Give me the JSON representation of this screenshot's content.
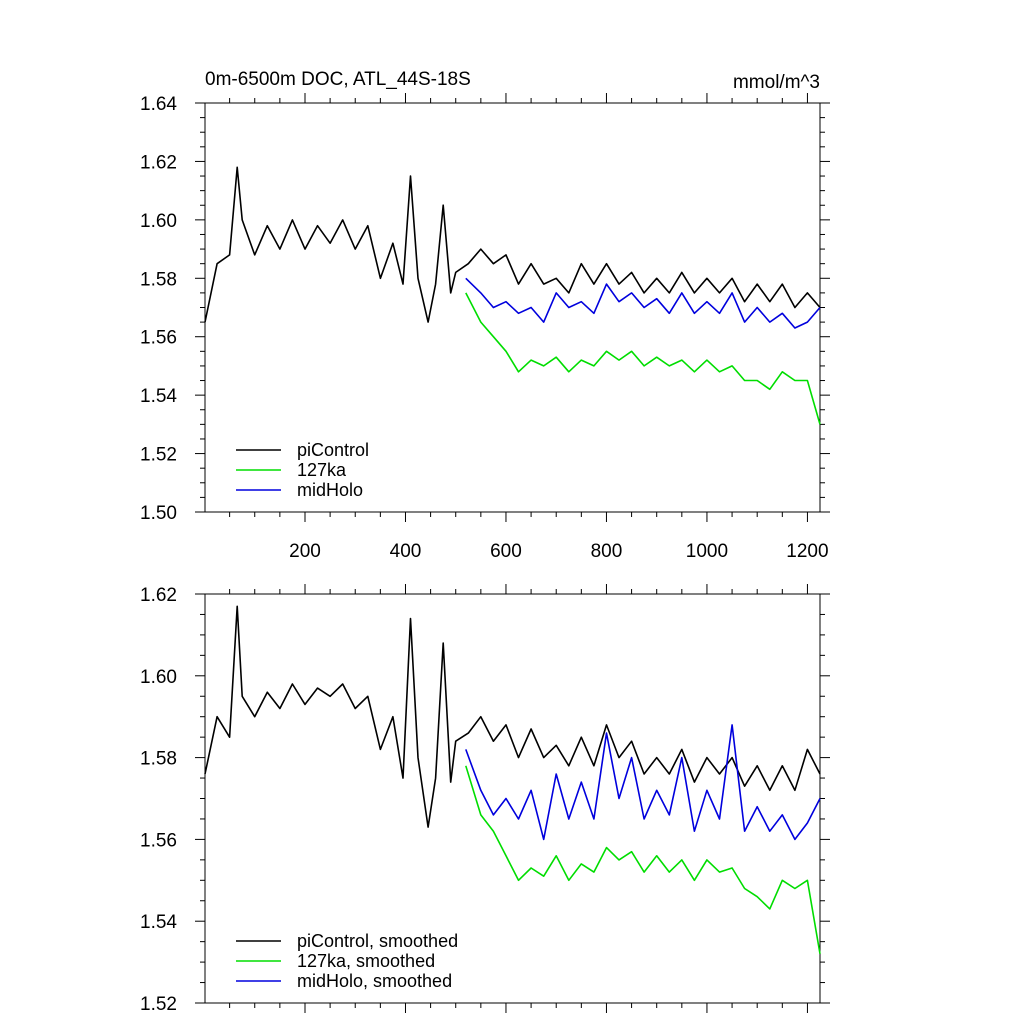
{
  "header": {
    "left_title": "0m-6500m DOC, ATL_44S-18S",
    "right_title": "mmol/m^3"
  },
  "colors": {
    "piControl": "#000000",
    "127ka": "#00dd00",
    "midHolo": "#0000dd"
  },
  "chart_data": [
    {
      "type": "line",
      "title": "0m-6500m DOC, ATL_44S-18S",
      "xlim": [
        1,
        1225
      ],
      "ylim": [
        1.5,
        1.64
      ],
      "x_ticks": [
        200,
        400,
        600,
        800,
        1000,
        1200
      ],
      "x_tick_labels": [
        "200",
        "400",
        "600",
        "800",
        "1000",
        "1200"
      ],
      "y_ticks": [
        1.5,
        1.52,
        1.54,
        1.56,
        1.58,
        1.6,
        1.62,
        1.64
      ],
      "y_tick_labels": [
        "1.50",
        "1.52",
        "1.54",
        "1.56",
        "1.58",
        "1.60",
        "1.62",
        "1.64"
      ],
      "legend_position": "bottom-left",
      "series": [
        {
          "name": "piControl",
          "color": "#000000",
          "x": [
            1,
            25,
            50,
            65,
            75,
            100,
            125,
            150,
            175,
            200,
            225,
            250,
            275,
            300,
            325,
            350,
            375,
            395,
            410,
            425,
            445,
            460,
            475,
            490,
            500,
            525,
            550,
            575,
            600,
            625,
            650,
            675,
            700,
            725,
            750,
            775,
            800,
            825,
            850,
            875,
            900,
            925,
            950,
            975,
            1000,
            1025,
            1050,
            1075,
            1100,
            1125,
            1150,
            1175,
            1200,
            1225
          ],
          "y": [
            1.565,
            1.585,
            1.588,
            1.618,
            1.6,
            1.588,
            1.598,
            1.59,
            1.6,
            1.59,
            1.598,
            1.592,
            1.6,
            1.59,
            1.598,
            1.58,
            1.592,
            1.578,
            1.615,
            1.58,
            1.565,
            1.578,
            1.605,
            1.575,
            1.582,
            1.585,
            1.59,
            1.585,
            1.588,
            1.578,
            1.585,
            1.578,
            1.58,
            1.575,
            1.585,
            1.578,
            1.585,
            1.578,
            1.582,
            1.575,
            1.58,
            1.575,
            1.582,
            1.575,
            1.58,
            1.575,
            1.58,
            1.572,
            1.578,
            1.572,
            1.578,
            1.57,
            1.575,
            1.57
          ]
        },
        {
          "name": "127ka",
          "color": "#00dd00",
          "x": [
            520,
            550,
            575,
            600,
            625,
            650,
            675,
            700,
            725,
            750,
            775,
            800,
            825,
            850,
            875,
            900,
            925,
            950,
            975,
            1000,
            1025,
            1050,
            1075,
            1100,
            1125,
            1150,
            1175,
            1200,
            1225
          ],
          "y": [
            1.575,
            1.565,
            1.56,
            1.555,
            1.548,
            1.552,
            1.55,
            1.553,
            1.548,
            1.552,
            1.55,
            1.555,
            1.552,
            1.555,
            1.55,
            1.553,
            1.55,
            1.552,
            1.548,
            1.552,
            1.548,
            1.55,
            1.545,
            1.545,
            1.542,
            1.548,
            1.545,
            1.545,
            1.53
          ]
        },
        {
          "name": "midHolo",
          "color": "#0000dd",
          "x": [
            520,
            550,
            575,
            600,
            625,
            650,
            675,
            700,
            725,
            750,
            775,
            800,
            825,
            850,
            875,
            900,
            925,
            950,
            975,
            1000,
            1025,
            1050,
            1075,
            1100,
            1125,
            1150,
            1175,
            1200,
            1225
          ],
          "y": [
            1.58,
            1.575,
            1.57,
            1.572,
            1.568,
            1.57,
            1.565,
            1.575,
            1.57,
            1.572,
            1.568,
            1.578,
            1.572,
            1.575,
            1.57,
            1.573,
            1.568,
            1.575,
            1.568,
            1.572,
            1.568,
            1.575,
            1.565,
            1.57,
            1.565,
            1.568,
            1.563,
            1.565,
            1.57
          ]
        }
      ]
    },
    {
      "type": "line",
      "title": "",
      "xlim": [
        1,
        1225
      ],
      "ylim": [
        1.52,
        1.62
      ],
      "y_ticks": [
        1.52,
        1.54,
        1.56,
        1.58,
        1.6,
        1.62
      ],
      "y_tick_labels": [
        "1.52",
        "1.54",
        "1.56",
        "1.58",
        "1.60",
        "1.62"
      ],
      "legend_position": "bottom-left",
      "series": [
        {
          "name": "piControl, smoothed",
          "color": "#000000",
          "x": [
            1,
            25,
            50,
            65,
            75,
            100,
            125,
            150,
            175,
            200,
            225,
            250,
            275,
            300,
            325,
            350,
            375,
            395,
            410,
            425,
            445,
            460,
            475,
            490,
            500,
            525,
            550,
            575,
            600,
            625,
            650,
            675,
            700,
            725,
            750,
            775,
            800,
            825,
            850,
            875,
            900,
            925,
            950,
            975,
            1000,
            1025,
            1050,
            1075,
            1100,
            1125,
            1150,
            1175,
            1200,
            1225
          ],
          "y": [
            1.576,
            1.59,
            1.585,
            1.617,
            1.595,
            1.59,
            1.596,
            1.592,
            1.598,
            1.593,
            1.597,
            1.595,
            1.598,
            1.592,
            1.595,
            1.582,
            1.59,
            1.575,
            1.614,
            1.58,
            1.563,
            1.575,
            1.608,
            1.574,
            1.584,
            1.586,
            1.59,
            1.584,
            1.588,
            1.58,
            1.587,
            1.58,
            1.583,
            1.578,
            1.585,
            1.578,
            1.588,
            1.58,
            1.584,
            1.576,
            1.58,
            1.576,
            1.582,
            1.574,
            1.58,
            1.576,
            1.58,
            1.573,
            1.578,
            1.572,
            1.578,
            1.572,
            1.582,
            1.576
          ]
        },
        {
          "name": "127ka, smoothed",
          "color": "#00dd00",
          "x": [
            520,
            550,
            575,
            600,
            625,
            650,
            675,
            700,
            725,
            750,
            775,
            800,
            825,
            850,
            875,
            900,
            925,
            950,
            975,
            1000,
            1025,
            1050,
            1075,
            1100,
            1125,
            1150,
            1175,
            1200,
            1225
          ],
          "y": [
            1.578,
            1.566,
            1.562,
            1.556,
            1.55,
            1.553,
            1.551,
            1.556,
            1.55,
            1.554,
            1.552,
            1.558,
            1.555,
            1.557,
            1.552,
            1.556,
            1.552,
            1.555,
            1.55,
            1.555,
            1.552,
            1.553,
            1.548,
            1.546,
            1.543,
            1.55,
            1.548,
            1.55,
            1.532
          ]
        },
        {
          "name": "midHolo, smoothed",
          "color": "#0000dd",
          "x": [
            520,
            550,
            575,
            600,
            625,
            650,
            675,
            700,
            725,
            750,
            775,
            800,
            825,
            850,
            875,
            900,
            925,
            950,
            975,
            1000,
            1025,
            1050,
            1075,
            1100,
            1125,
            1150,
            1175,
            1200,
            1225
          ],
          "y": [
            1.582,
            1.572,
            1.566,
            1.57,
            1.565,
            1.572,
            1.56,
            1.576,
            1.565,
            1.574,
            1.565,
            1.586,
            1.57,
            1.58,
            1.565,
            1.572,
            1.566,
            1.58,
            1.562,
            1.572,
            1.565,
            1.588,
            1.562,
            1.568,
            1.562,
            1.566,
            1.56,
            1.564,
            1.57
          ]
        }
      ]
    }
  ]
}
